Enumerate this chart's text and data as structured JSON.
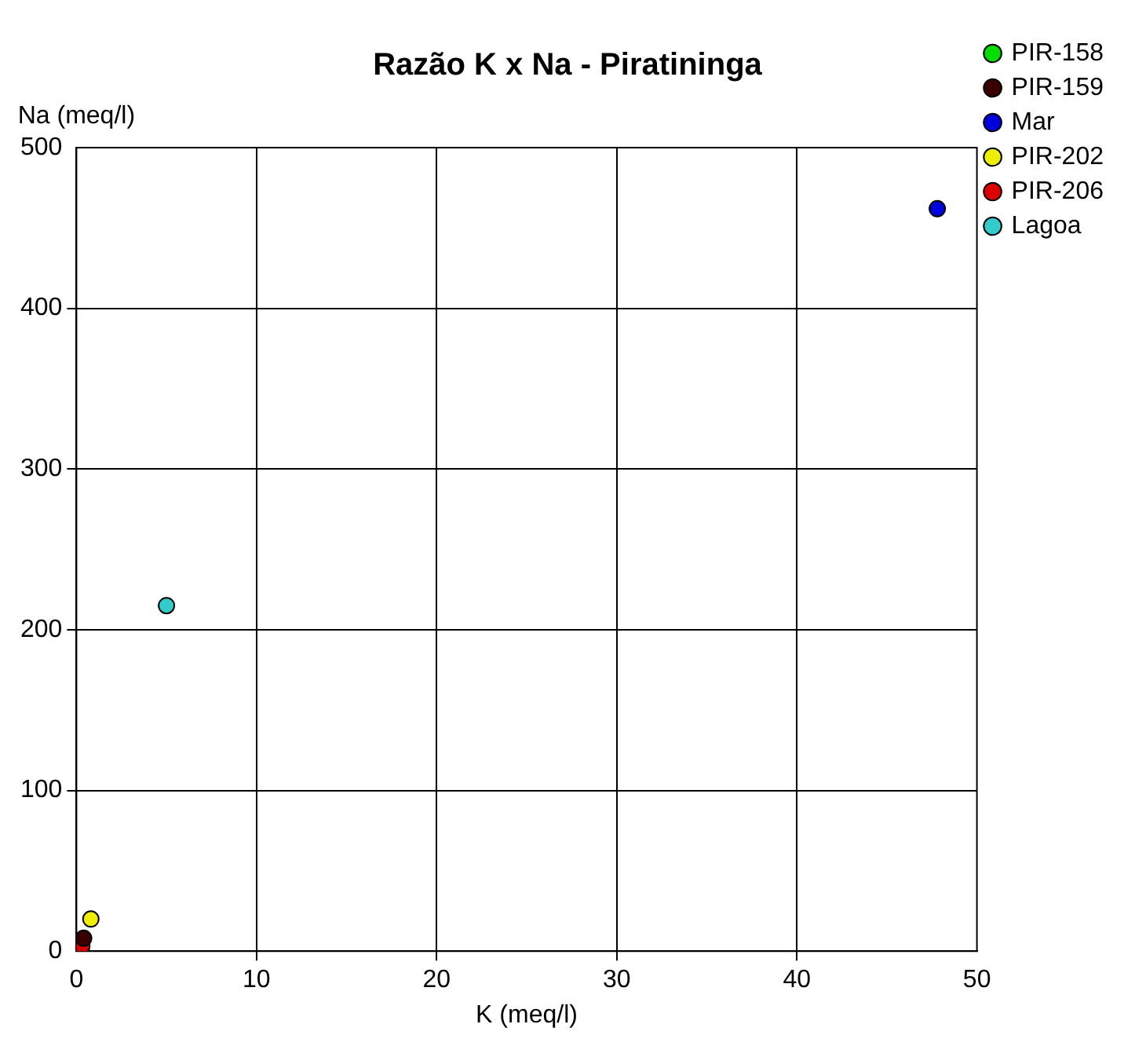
{
  "chart_data": {
    "type": "scatter",
    "title": "Razão K x Na - Piratininga",
    "xlabel": "K (meq/l)",
    "ylabel": "Na (meq/l)",
    "xlim": [
      0,
      50
    ],
    "xticks": [
      0,
      10,
      20,
      30,
      40,
      50
    ],
    "ylim": [
      0,
      500
    ],
    "yticks": [
      0,
      100,
      200,
      300,
      400,
      500
    ],
    "grid": true,
    "legend": "right",
    "marker": "circle",
    "series": [
      {
        "name": "PIR-158",
        "color": "#00dd00",
        "x": [
          null
        ],
        "values": [
          null
        ]
      },
      {
        "name": "PIR-159",
        "color": "#3a0000",
        "x": [
          0.4
        ],
        "values": [
          8
        ]
      },
      {
        "name": "Mar",
        "color": "#0000dd",
        "x": [
          47.8
        ],
        "values": [
          462
        ]
      },
      {
        "name": "PIR-202",
        "color": "#eeee00",
        "x": [
          0.8
        ],
        "values": [
          20
        ]
      },
      {
        "name": "PIR-206",
        "color": "#dd0000",
        "x": [
          0.3
        ],
        "values": [
          3
        ]
      },
      {
        "name": "Lagoa",
        "color": "#33cccc",
        "x": [
          5
        ],
        "values": [
          215
        ]
      }
    ]
  }
}
